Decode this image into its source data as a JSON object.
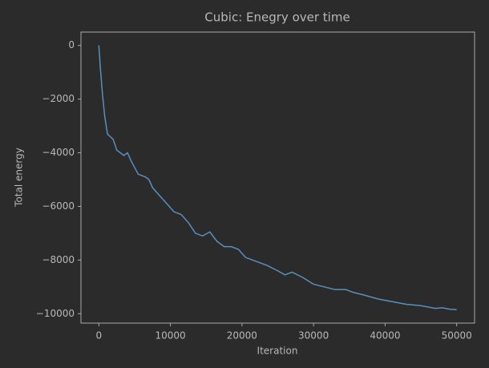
{
  "chart_data": {
    "type": "line",
    "title": "Cubic: Enegry over time",
    "x_label": "Iteration",
    "y_label": "Total energy",
    "x": [
      0,
      200,
      500,
      800,
      1200,
      2000,
      2500,
      3500,
      4000,
      4500,
      5500,
      6500,
      7000,
      7500,
      8500,
      9500,
      10500,
      11500,
      12500,
      13500,
      14500,
      15500,
      16500,
      17500,
      18500,
      19500,
      20500,
      22000,
      23500,
      25000,
      26000,
      27000,
      28500,
      30000,
      31500,
      33000,
      34500,
      35500,
      37000,
      39000,
      41000,
      43000,
      45000,
      47000,
      48000,
      49000,
      50000
    ],
    "series": [
      {
        "color": "#5a8fbc",
        "values": [
          0,
          -800,
          -1800,
          -2600,
          -3300,
          -3500,
          -3900,
          -4100,
          -4000,
          -4300,
          -4800,
          -4900,
          -5000,
          -5300,
          -5600,
          -5900,
          -6200,
          -6300,
          -6600,
          -7000,
          -7100,
          -6950,
          -7300,
          -7500,
          -7500,
          -7600,
          -7900,
          -8050,
          -8200,
          -8400,
          -8550,
          -8450,
          -8650,
          -8900,
          -9000,
          -9100,
          -9100,
          -9200,
          -9300,
          -9450,
          -9550,
          -9650,
          -9700,
          -9800,
          -9780,
          -9830,
          -9850
        ]
      }
    ],
    "xlim": [
      -2500,
      52500
    ],
    "xticks": [
      0,
      10000,
      20000,
      30000,
      40000,
      50000
    ],
    "ylim": [
      -10350,
      500
    ],
    "yticks": [
      0,
      {
        "value": -2000,
        "label": "−2000"
      },
      {
        "value": -4000,
        "label": "−4000"
      },
      {
        "value": -6000,
        "label": "−6000"
      },
      {
        "value": -8000,
        "label": "−8000"
      },
      {
        "value": -10000,
        "label": "−10000"
      }
    ]
  }
}
